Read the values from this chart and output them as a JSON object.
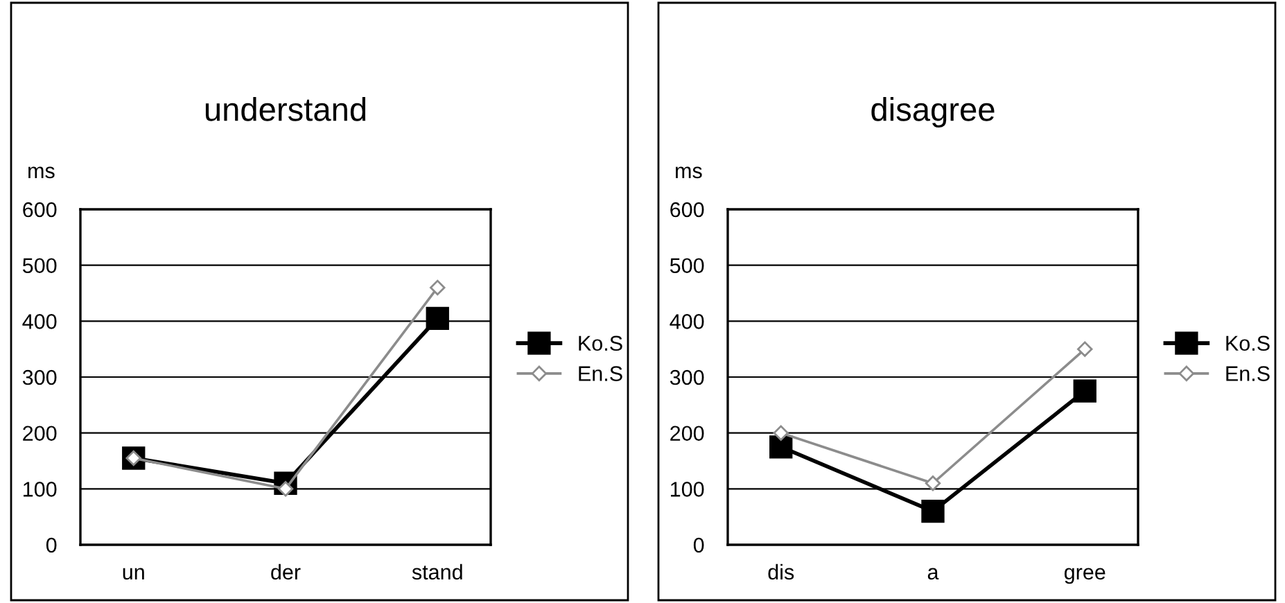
{
  "chart_data": [
    {
      "type": "line",
      "title": "understand",
      "ylabel": "ms",
      "categories": [
        "un",
        "der",
        "stand"
      ],
      "ylim": [
        0,
        600
      ],
      "yticks": [
        0,
        100,
        200,
        300,
        400,
        500,
        600
      ],
      "grid": "y",
      "legend": "right",
      "series": [
        {
          "name": "Ko.S",
          "color": "#000000",
          "marker": "square",
          "values": [
            155,
            110,
            405
          ]
        },
        {
          "name": "En.S",
          "color": "#8c8c8c",
          "marker": "diamond",
          "values": [
            155,
            100,
            460
          ]
        }
      ]
    },
    {
      "type": "line",
      "title": "disagree",
      "ylabel": "ms",
      "categories": [
        "dis",
        "a",
        "gree"
      ],
      "ylim": [
        0,
        600
      ],
      "yticks": [
        0,
        100,
        200,
        300,
        400,
        500,
        600
      ],
      "grid": "y",
      "legend": "right",
      "series": [
        {
          "name": "Ko.S",
          "color": "#000000",
          "marker": "square",
          "values": [
            175,
            60,
            275
          ]
        },
        {
          "name": "En.S",
          "color": "#8c8c8c",
          "marker": "diamond",
          "values": [
            200,
            110,
            350
          ]
        }
      ]
    }
  ]
}
